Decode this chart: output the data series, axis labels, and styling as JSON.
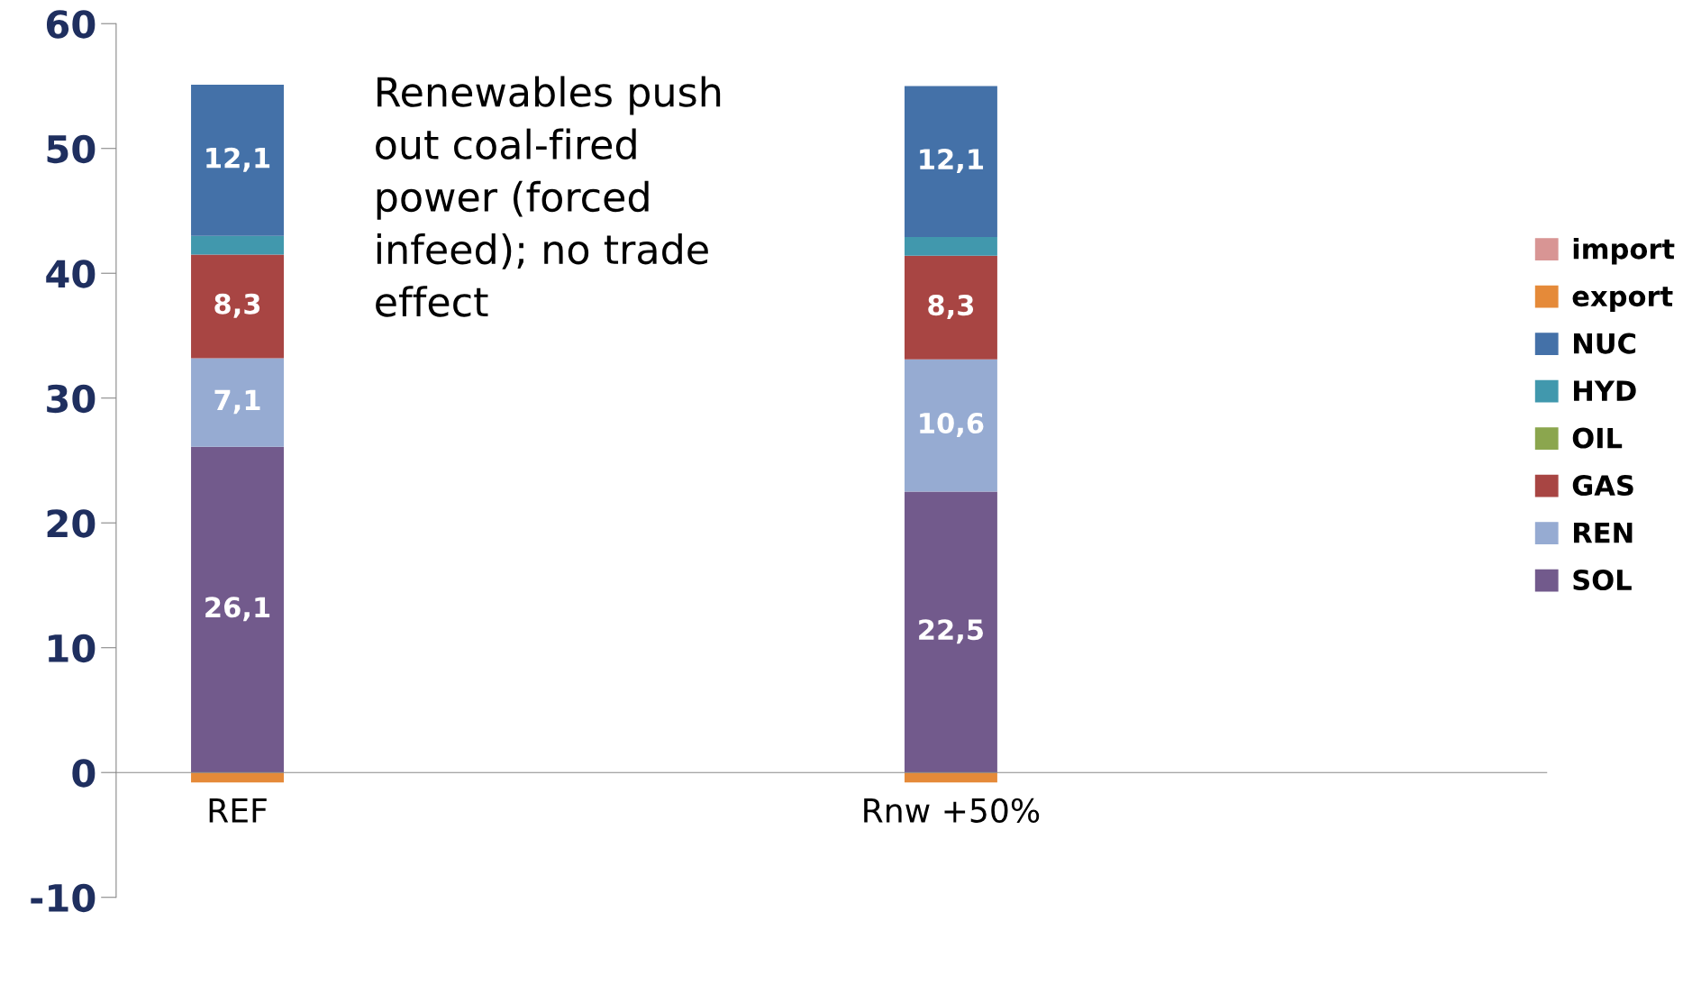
{
  "chart_data": {
    "type": "bar",
    "stacked": true,
    "categories": [
      "REF",
      "Rnw +50%"
    ],
    "series": [
      {
        "name": "SOL",
        "color": "#725a8c",
        "values": [
          26.1,
          22.5
        ],
        "value_labels": [
          "26,1",
          "22,5"
        ]
      },
      {
        "name": "REN",
        "color": "#96abd2",
        "values": [
          7.1,
          10.6
        ],
        "value_labels": [
          "7,1",
          "10,6"
        ]
      },
      {
        "name": "GAS",
        "color": "#a84543",
        "values": [
          8.3,
          8.3
        ],
        "value_labels": [
          "8,3",
          "8,3"
        ]
      },
      {
        "name": "OIL",
        "color": "#8ba64e",
        "values": [
          0,
          0
        ]
      },
      {
        "name": "HYD",
        "color": "#4198ad",
        "values": [
          1.5,
          1.5
        ]
      },
      {
        "name": "NUC",
        "color": "#4471a8",
        "values": [
          12.1,
          12.1
        ],
        "value_labels": [
          "12,1",
          "12,1"
        ]
      },
      {
        "name": "export",
        "color": "#e58a39",
        "values": [
          -0.8,
          -0.8
        ]
      },
      {
        "name": "import",
        "color": "#d89594",
        "values": [
          0,
          0
        ]
      }
    ],
    "ylim": [
      -10,
      60
    ],
    "yticks": [
      -10,
      0,
      10,
      20,
      30,
      40,
      50,
      60
    ],
    "grid": false,
    "legend": "right",
    "annotations": [
      "Renewables push\nout coal-fired\npower (forced\ninfeed); no trade\neffect"
    ]
  }
}
